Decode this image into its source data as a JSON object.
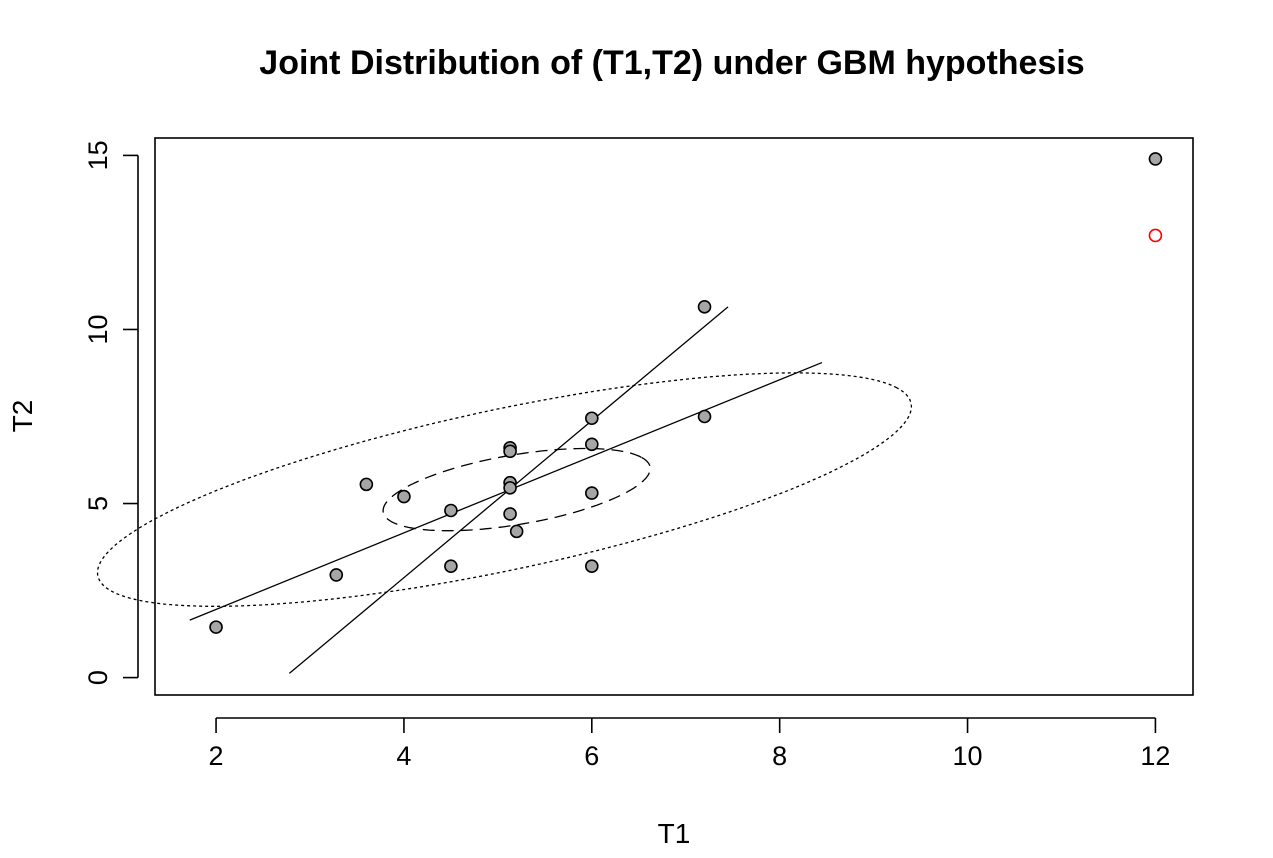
{
  "chart_data": {
    "type": "scatter",
    "title": "Joint Distribution of (T1,T2) under GBM hypothesis",
    "xlabel": "T1",
    "ylabel": "T2",
    "xlim": [
      1.35,
      12.4
    ],
    "ylim": [
      -0.5,
      15.5
    ],
    "xticks": [
      2,
      4,
      6,
      8,
      10,
      12
    ],
    "yticks": [
      0,
      5,
      10,
      15
    ],
    "grid": false,
    "legend": "none",
    "series": [
      {
        "marker": "filled-circle",
        "fill": "#a6a6a6",
        "stroke": "#000000",
        "points": [
          [
            2.0,
            1.45
          ],
          [
            3.28,
            2.95
          ],
          [
            3.6,
            5.55
          ],
          [
            4.0,
            5.2
          ],
          [
            4.5,
            4.8
          ],
          [
            4.5,
            3.2
          ],
          [
            5.13,
            6.6
          ],
          [
            5.13,
            6.5
          ],
          [
            5.13,
            5.6
          ],
          [
            5.13,
            5.45
          ],
          [
            5.13,
            4.7
          ],
          [
            5.2,
            4.2
          ],
          [
            6.0,
            7.45
          ],
          [
            6.0,
            6.7
          ],
          [
            6.0,
            5.3
          ],
          [
            6.0,
            3.2
          ],
          [
            7.2,
            10.65
          ],
          [
            7.2,
            7.5
          ],
          [
            12.0,
            14.9
          ]
        ]
      },
      {
        "marker": "open-circle",
        "stroke": "#ff0000",
        "points": [
          [
            12.0,
            12.7
          ]
        ]
      }
    ],
    "lines": [
      {
        "style": "solid",
        "points": [
          [
            1.72,
            1.65
          ],
          [
            8.45,
            9.05
          ]
        ]
      },
      {
        "style": "solid",
        "points": [
          [
            2.78,
            0.12
          ],
          [
            7.45,
            10.65
          ]
        ]
      }
    ],
    "ellipses": [
      {
        "style": "dashed",
        "center": [
          5.2,
          5.4
        ],
        "semi_major": 1.62,
        "semi_minor": 0.89,
        "angle_deg": 35.0
      },
      {
        "style": "dotted",
        "center": [
          5.07,
          5.4
        ],
        "semi_major": 5.1,
        "semi_minor": 2.0,
        "angle_deg": 35.0
      }
    ]
  }
}
